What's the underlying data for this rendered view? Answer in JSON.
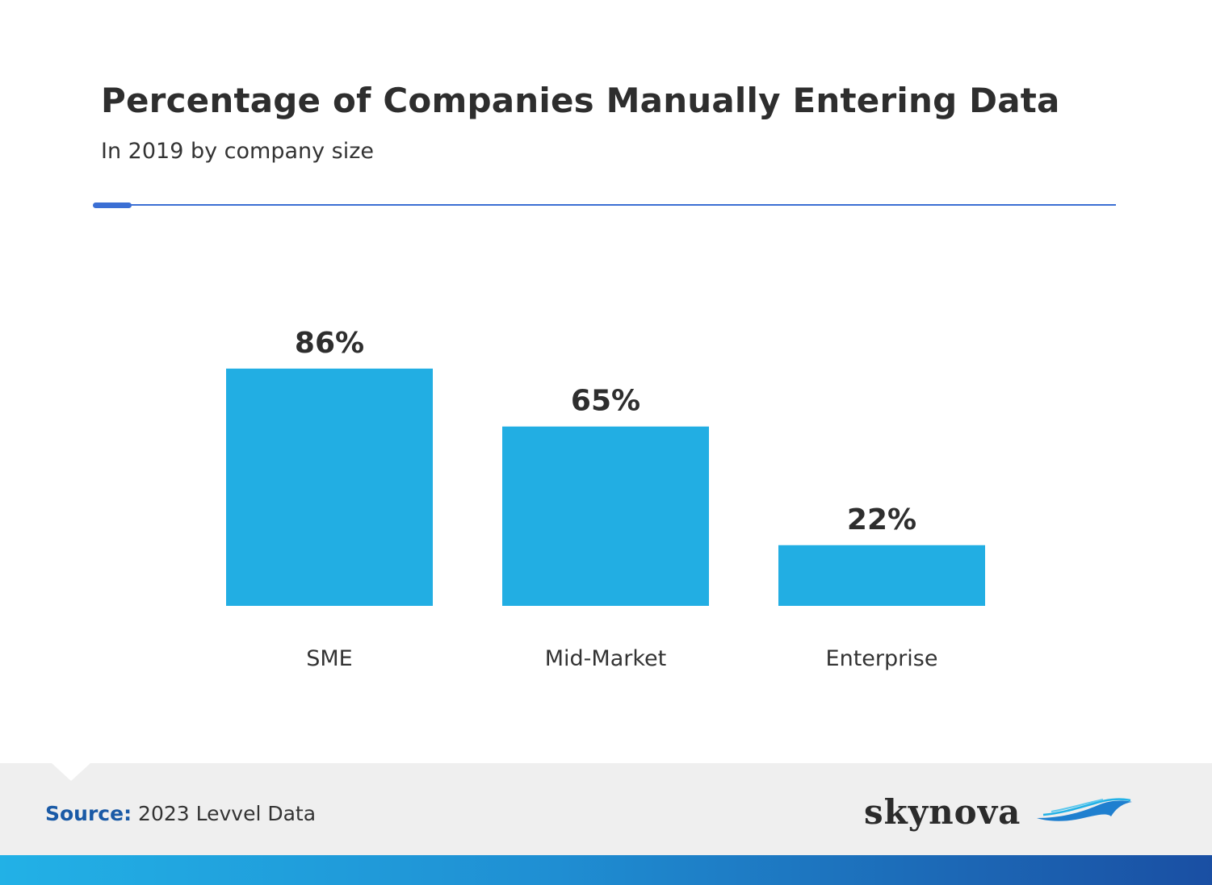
{
  "header": {
    "title": "Percentage of Companies Manually Entering Data",
    "subtitle": "In 2019 by company size"
  },
  "chart_data": {
    "type": "bar",
    "title": "Percentage of Companies Manually Entering Data",
    "subtitle": "In 2019 by company size",
    "categories": [
      "SME",
      "Mid-Market",
      "Enterprise"
    ],
    "values": [
      86,
      65,
      22
    ],
    "value_labels": [
      "86%",
      "65%",
      "22%"
    ],
    "xlabel": "",
    "ylabel": "",
    "ylim": [
      0,
      100
    ],
    "grid": false,
    "bar_color": "#22aee3"
  },
  "footer": {
    "source_label": "Source:",
    "source_text": "2023 Levvel Data",
    "brand_name": "skynova"
  },
  "colors": {
    "accent": "#3b6fd4",
    "bar": "#22aee3",
    "source_label": "#1a5aa6"
  }
}
